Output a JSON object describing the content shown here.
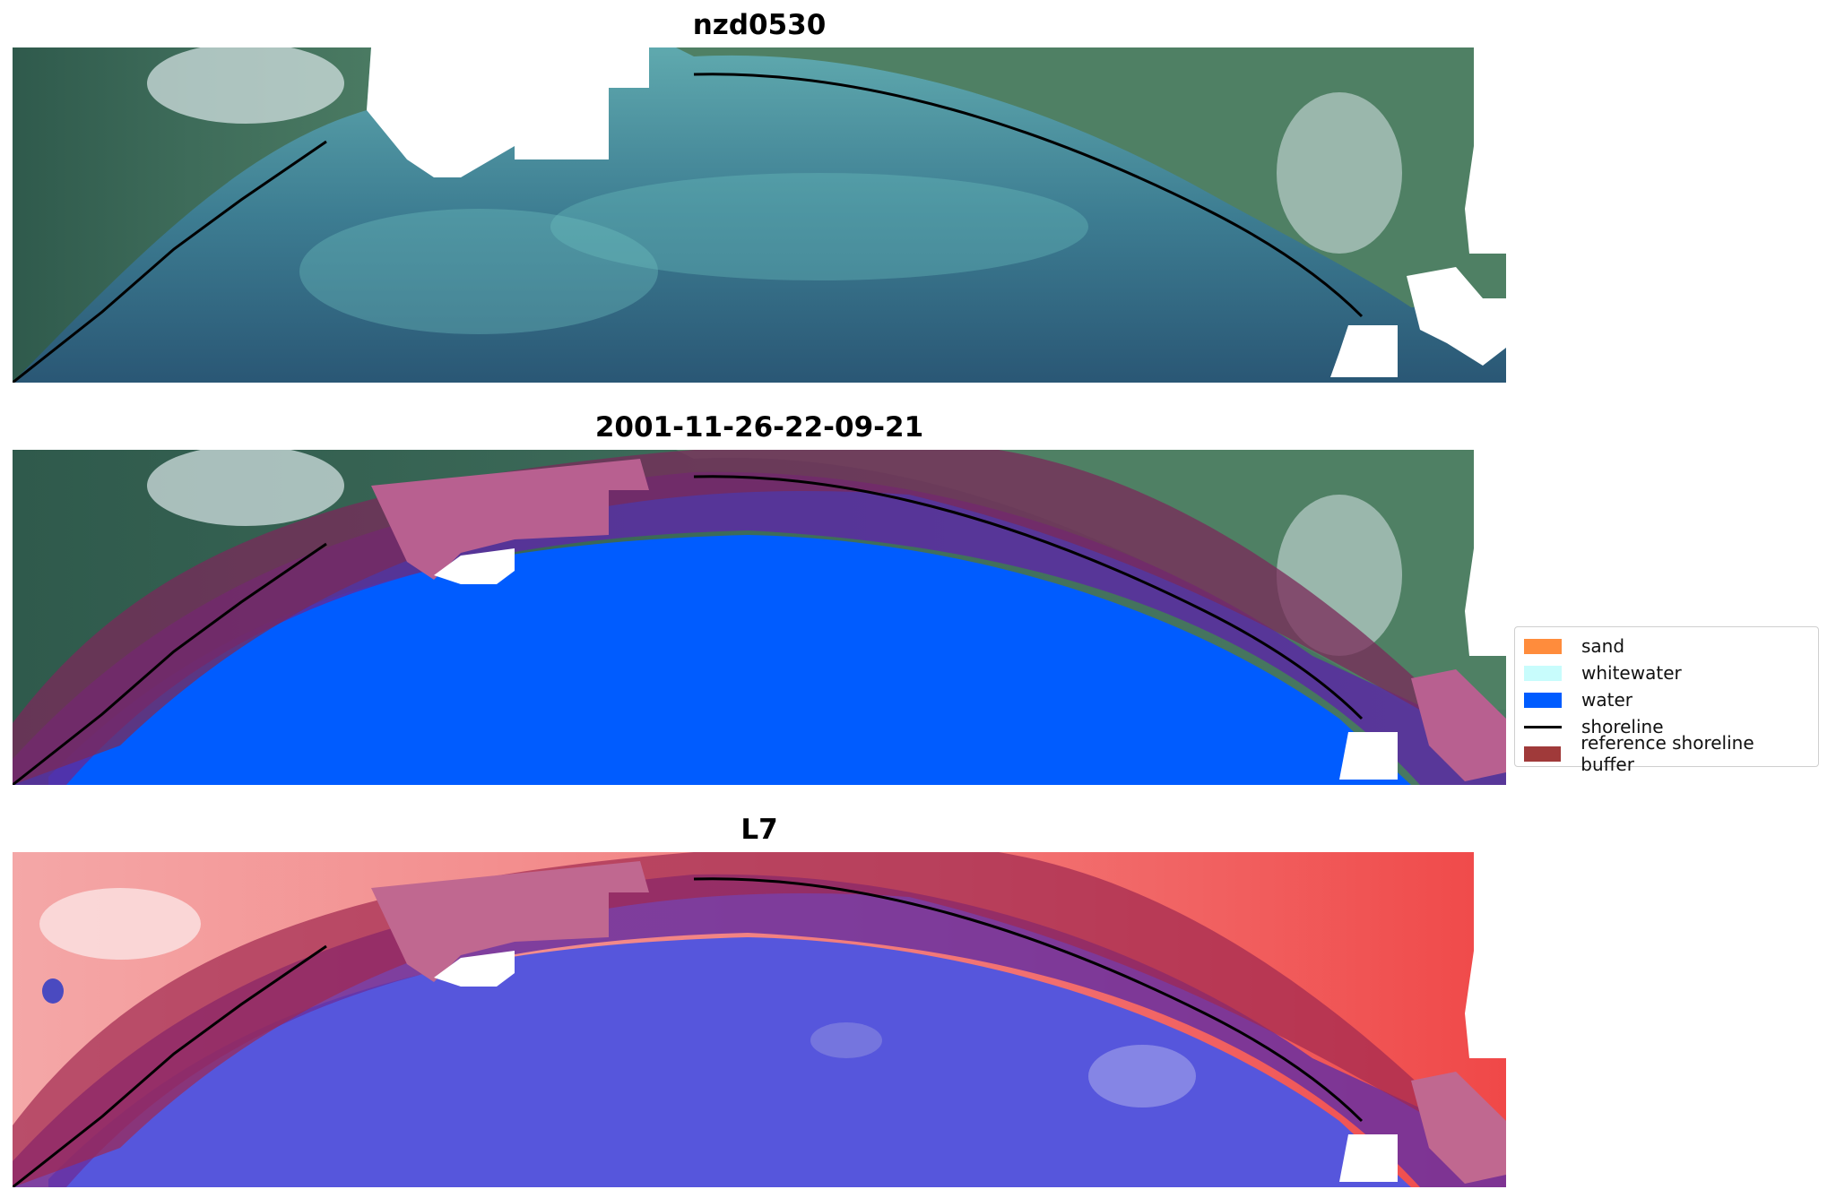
{
  "panels": [
    {
      "title": "nzd0530",
      "kind": "rgb"
    },
    {
      "title": "2001-11-26-22-09-21",
      "kind": "classified"
    },
    {
      "title": "L7",
      "kind": "index"
    }
  ],
  "legend": {
    "items": [
      {
        "label": "sand",
        "color": "#ff8c3c",
        "type": "patch"
      },
      {
        "label": "whitewater",
        "color": "#c8fcfc",
        "type": "patch"
      },
      {
        "label": "water",
        "color": "#005cff",
        "type": "patch"
      },
      {
        "label": "shoreline",
        "color": "#000000",
        "type": "line"
      },
      {
        "label": "reference shoreline buffer",
        "color": "#a03a3a",
        "type": "patch"
      }
    ]
  },
  "colors": {
    "land_rgb": "#3f6655",
    "shallow_water": "#63aeb2",
    "deep_water": "#2c5a7a",
    "cloud_mask": "#ffffff",
    "buffer_overlay": "#b06090",
    "classified_water": "#005cff",
    "index_land": "#f07070",
    "index_water": "#5a5ae0"
  }
}
